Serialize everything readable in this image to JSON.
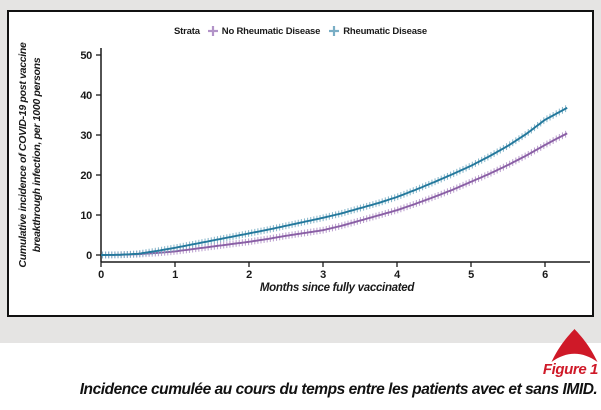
{
  "page": {
    "bg_color": "#e5e4e3",
    "panel_bg": "#ffffff",
    "panel_border": "#111111"
  },
  "figure_footer": {
    "logo_icon": "red-swoosh-arrow",
    "logo_color": "#cf1928",
    "label": "Figure 1",
    "label_color": "#cf1928",
    "caption": "Incidence cumulée au cours du temps entre les patients avec et sans IMID."
  },
  "chart_data": {
    "type": "line",
    "title": "",
    "legend_title": "Strata",
    "legend_position": "top",
    "xlabel": "Months since fully vaccinated",
    "ylabel": "Cumulative incidence of COVID-19 post vaccine breakthrough infection, per 1000 persons",
    "ylabel_line1": "Cumulative incidence of COVID-19 post vaccine",
    "ylabel_line2": "breakthrough infection, per 1000 persons",
    "xlim": [
      0,
      6.6
    ],
    "ylim": [
      0,
      50
    ],
    "x_ticks": [
      0,
      1,
      2,
      3,
      4,
      5,
      6
    ],
    "y_ticks": [
      0,
      10,
      20,
      30,
      40,
      50
    ],
    "grid": false,
    "marker": "censor-plus-ticks",
    "x": [
      0,
      0.25,
      0.5,
      0.75,
      1,
      1.25,
      1.5,
      1.75,
      2,
      2.25,
      2.5,
      2.75,
      3,
      3.25,
      3.5,
      3.75,
      4,
      4.25,
      4.5,
      4.75,
      5,
      5.25,
      5.5,
      5.75,
      6,
      6.15,
      6.3
    ],
    "series": [
      {
        "name": "No Rheumatic Disease",
        "line_color": "#8a5fa5",
        "marker_color": "#b293c8",
        "values": [
          0,
          0.05,
          0.2,
          0.5,
          0.9,
          1.5,
          2.1,
          2.7,
          3.3,
          4.0,
          4.8,
          5.5,
          6.2,
          7.3,
          8.6,
          9.9,
          11.2,
          12.8,
          14.5,
          16.3,
          18.3,
          20.3,
          22.5,
          24.9,
          27.5,
          29.0,
          30.4
        ]
      },
      {
        "name": "Rheumatic Disease",
        "line_color": "#23789c",
        "marker_color": "#79aec5",
        "values": [
          0,
          0.05,
          0.3,
          1.0,
          1.8,
          2.7,
          3.6,
          4.5,
          5.4,
          6.3,
          7.3,
          8.3,
          9.3,
          10.4,
          11.7,
          13.0,
          14.5,
          16.3,
          18.2,
          20.2,
          22.3,
          24.7,
          27.3,
          30.3,
          33.8,
          35.3,
          36.8
        ]
      }
    ]
  }
}
